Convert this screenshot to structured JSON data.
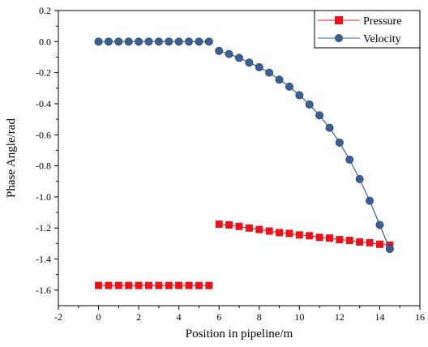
{
  "chart_data": {
    "type": "line",
    "xlabel": "Position in pipeline/m",
    "ylabel": "Phase Angle/rad",
    "xlim": [
      -2,
      16
    ],
    "ylim": [
      -1.7,
      0.2
    ],
    "xticks": [
      -2,
      0,
      2,
      4,
      6,
      8,
      10,
      12,
      14,
      16
    ],
    "yticks": [
      0.2,
      0.0,
      -0.2,
      -0.4,
      -0.6,
      -0.8,
      -1.0,
      -1.2,
      -1.4,
      -1.6
    ],
    "xtick_labels": [
      "-2",
      "0",
      "2",
      "4",
      "6",
      "8",
      "10",
      "12",
      "14",
      "16"
    ],
    "ytick_labels": [
      "0.2",
      "0.0",
      "-0.2",
      "-0.4",
      "-0.6",
      "-0.8",
      "-1.0",
      "-1.2",
      "-1.4",
      "-1.6"
    ],
    "grid": false,
    "legend_position": "top-right",
    "series": [
      {
        "name": "Pressure",
        "color": "#e8141c",
        "marker": "square",
        "segments": [
          {
            "x": [
              0,
              0.5,
              1,
              1.5,
              2,
              2.5,
              3,
              3.5,
              4,
              4.5,
              5,
              5.5
            ],
            "y": [
              -1.57,
              -1.57,
              -1.57,
              -1.57,
              -1.57,
              -1.57,
              -1.57,
              -1.57,
              -1.57,
              -1.57,
              -1.57,
              -1.57
            ]
          },
          {
            "x": [
              6,
              6.5,
              7,
              7.5,
              8,
              8.5,
              9,
              9.5,
              10,
              10.5,
              11,
              11.5,
              12,
              12.5,
              13,
              13.5,
              14,
              14.5
            ],
            "y": [
              -1.175,
              -1.18,
              -1.19,
              -1.2,
              -1.21,
              -1.22,
              -1.23,
              -1.235,
              -1.245,
              -1.25,
              -1.26,
              -1.265,
              -1.275,
              -1.28,
              -1.29,
              -1.295,
              -1.305,
              -1.31
            ]
          }
        ]
      },
      {
        "name": "Velocity",
        "color": "#3a5f94",
        "marker": "circle",
        "segments": [
          {
            "x": [
              0,
              0.5,
              1,
              1.5,
              2,
              2.5,
              3,
              3.5,
              4,
              4.5,
              5,
              5.5
            ],
            "y": [
              0,
              0,
              0,
              0,
              0,
              0,
              0,
              0,
              0,
              0,
              0,
              0
            ]
          },
          {
            "x": [
              6,
              6.5,
              7,
              7.5,
              8,
              8.5,
              9,
              9.5,
              10,
              10.5,
              11,
              11.5,
              12,
              12.5,
              13,
              13.5,
              14,
              14.5
            ],
            "y": [
              -0.06,
              -0.08,
              -0.105,
              -0.135,
              -0.165,
              -0.2,
              -0.245,
              -0.29,
              -0.345,
              -0.405,
              -0.475,
              -0.555,
              -0.65,
              -0.76,
              -0.885,
              -1.025,
              -1.18,
              -1.335
            ]
          }
        ]
      }
    ]
  }
}
